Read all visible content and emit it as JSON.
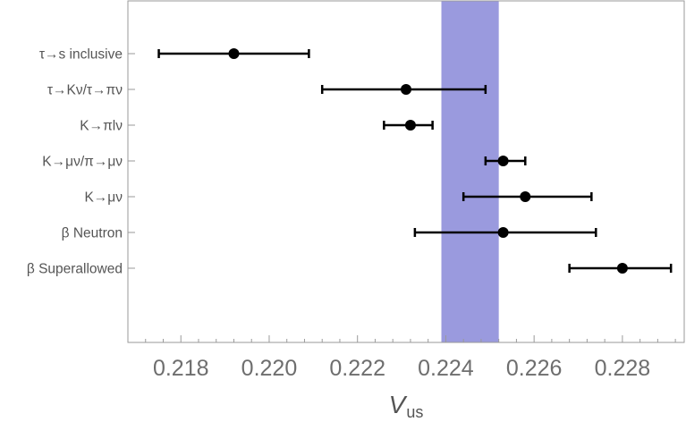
{
  "chart_data": {
    "type": "scatter",
    "subtype": "errorbar-forest",
    "xlabel_main": "V",
    "xlabel_sub": "us",
    "xlim": [
      0.2168,
      0.2294
    ],
    "xticks": [
      0.218,
      0.22,
      0.222,
      0.224,
      0.226,
      0.228
    ],
    "xtick_labels": [
      "0.218",
      "0.220",
      "0.222",
      "0.224",
      "0.226",
      "0.228"
    ],
    "grid": false,
    "band": {
      "from": 0.2239,
      "to": 0.2252,
      "color": "#9a9ade"
    },
    "marker_color": "#000000",
    "points": [
      {
        "label": "τ→s inclusive",
        "value": 0.2192,
        "low": 0.2175,
        "high": 0.2209
      },
      {
        "label": "τ→Kν/τ→πν",
        "value": 0.2231,
        "low": 0.2212,
        "high": 0.2249
      },
      {
        "label": "K→πlν",
        "value": 0.2232,
        "low": 0.2226,
        "high": 0.2237
      },
      {
        "label": "K→μν/π→μν",
        "value": 0.2253,
        "low": 0.2249,
        "high": 0.2258
      },
      {
        "label": "K→μν",
        "value": 0.2258,
        "low": 0.2244,
        "high": 0.2273
      },
      {
        "label": "β Neutron",
        "value": 0.2253,
        "low": 0.2233,
        "high": 0.2274
      },
      {
        "label": "β Superallowed",
        "value": 0.228,
        "low": 0.2268,
        "high": 0.2291
      }
    ]
  }
}
